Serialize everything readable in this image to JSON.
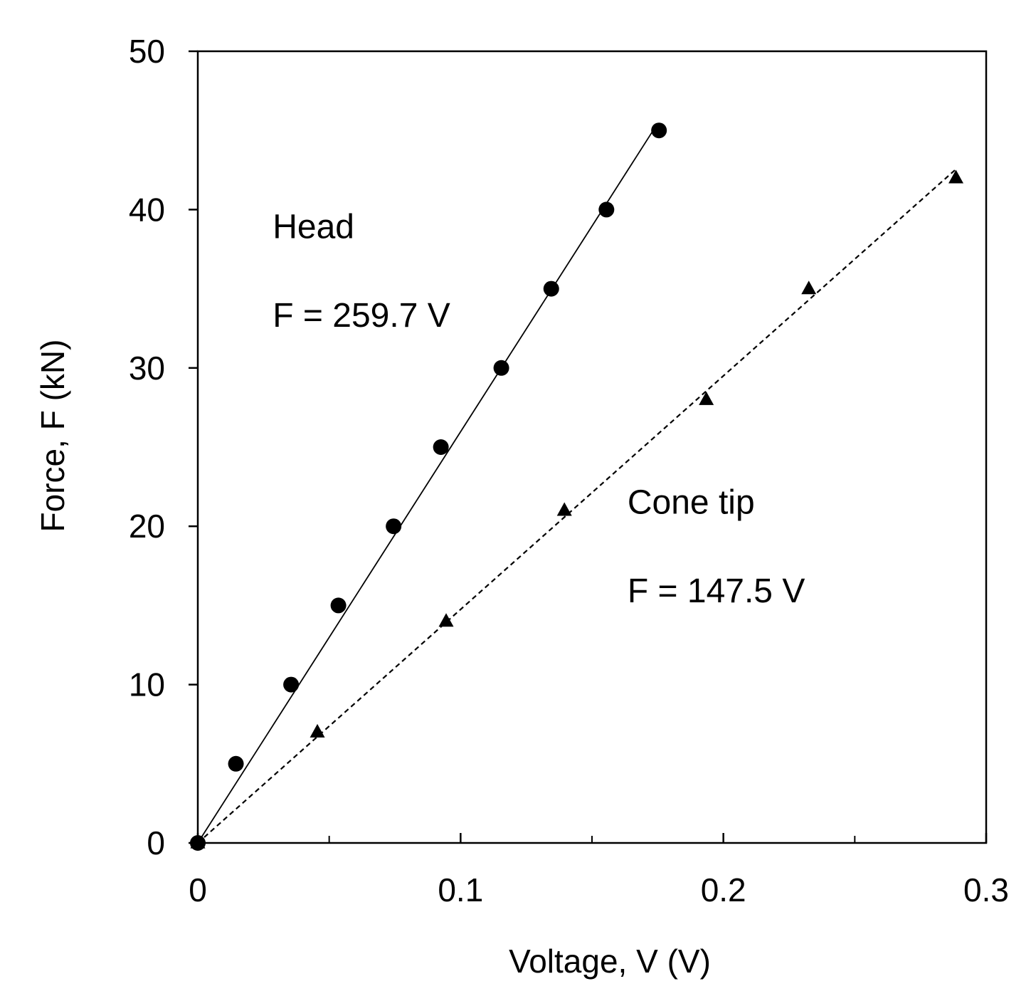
{
  "chart_data": {
    "type": "scatter",
    "xlabel": "Voltage, V (V)",
    "ylabel": "Force, F (kN)",
    "xlim": [
      0,
      0.3
    ],
    "ylim": [
      0,
      50
    ],
    "xticks": [
      0,
      0.1,
      0.2,
      0.3
    ],
    "xtick_labels": [
      "0",
      "0.1",
      "0.2",
      "0.3"
    ],
    "xminor_ticks": [
      0.05,
      0.15,
      0.25
    ],
    "yticks": [
      0,
      10,
      20,
      30,
      40,
      50
    ],
    "ytick_labels": [
      "0",
      "10",
      "20",
      "30",
      "40",
      "50"
    ],
    "grid": false,
    "series": [
      {
        "marker": "circle",
        "color": "#000000",
        "x": [
          0,
          0.0145,
          0.0355,
          0.0535,
          0.0745,
          0.0925,
          0.1155,
          0.1345,
          0.1555,
          0.1755
        ],
        "y": [
          0,
          5,
          10,
          15,
          20,
          25,
          30,
          35,
          40,
          45
        ],
        "fit": {
          "slope": 259.7,
          "x_range": [
            0,
            0.1733
          ],
          "line": "solid"
        }
      },
      {
        "marker": "triangle",
        "color": "#000000",
        "x": [
          0,
          0.0455,
          0.0945,
          0.1395,
          0.1935,
          0.2325,
          0.2885
        ],
        "y": [
          0,
          7,
          14,
          21,
          28,
          35,
          42
        ],
        "fit": {
          "slope": 147.5,
          "x_range": [
            0,
            0.2885
          ],
          "line": "dashed"
        }
      }
    ],
    "annotations": [
      {
        "key": "head_label",
        "text": "Head",
        "x": 0.0285,
        "y": 38.2
      },
      {
        "key": "head_eq",
        "text": "F = 259.7 V",
        "x": 0.0285,
        "y": 32.6
      },
      {
        "key": "cone_label",
        "text": "Cone tip",
        "x": 0.1635,
        "y": 20.8
      },
      {
        "key": "cone_eq",
        "text": "F = 147.5 V",
        "x": 0.1635,
        "y": 15.2
      }
    ]
  }
}
